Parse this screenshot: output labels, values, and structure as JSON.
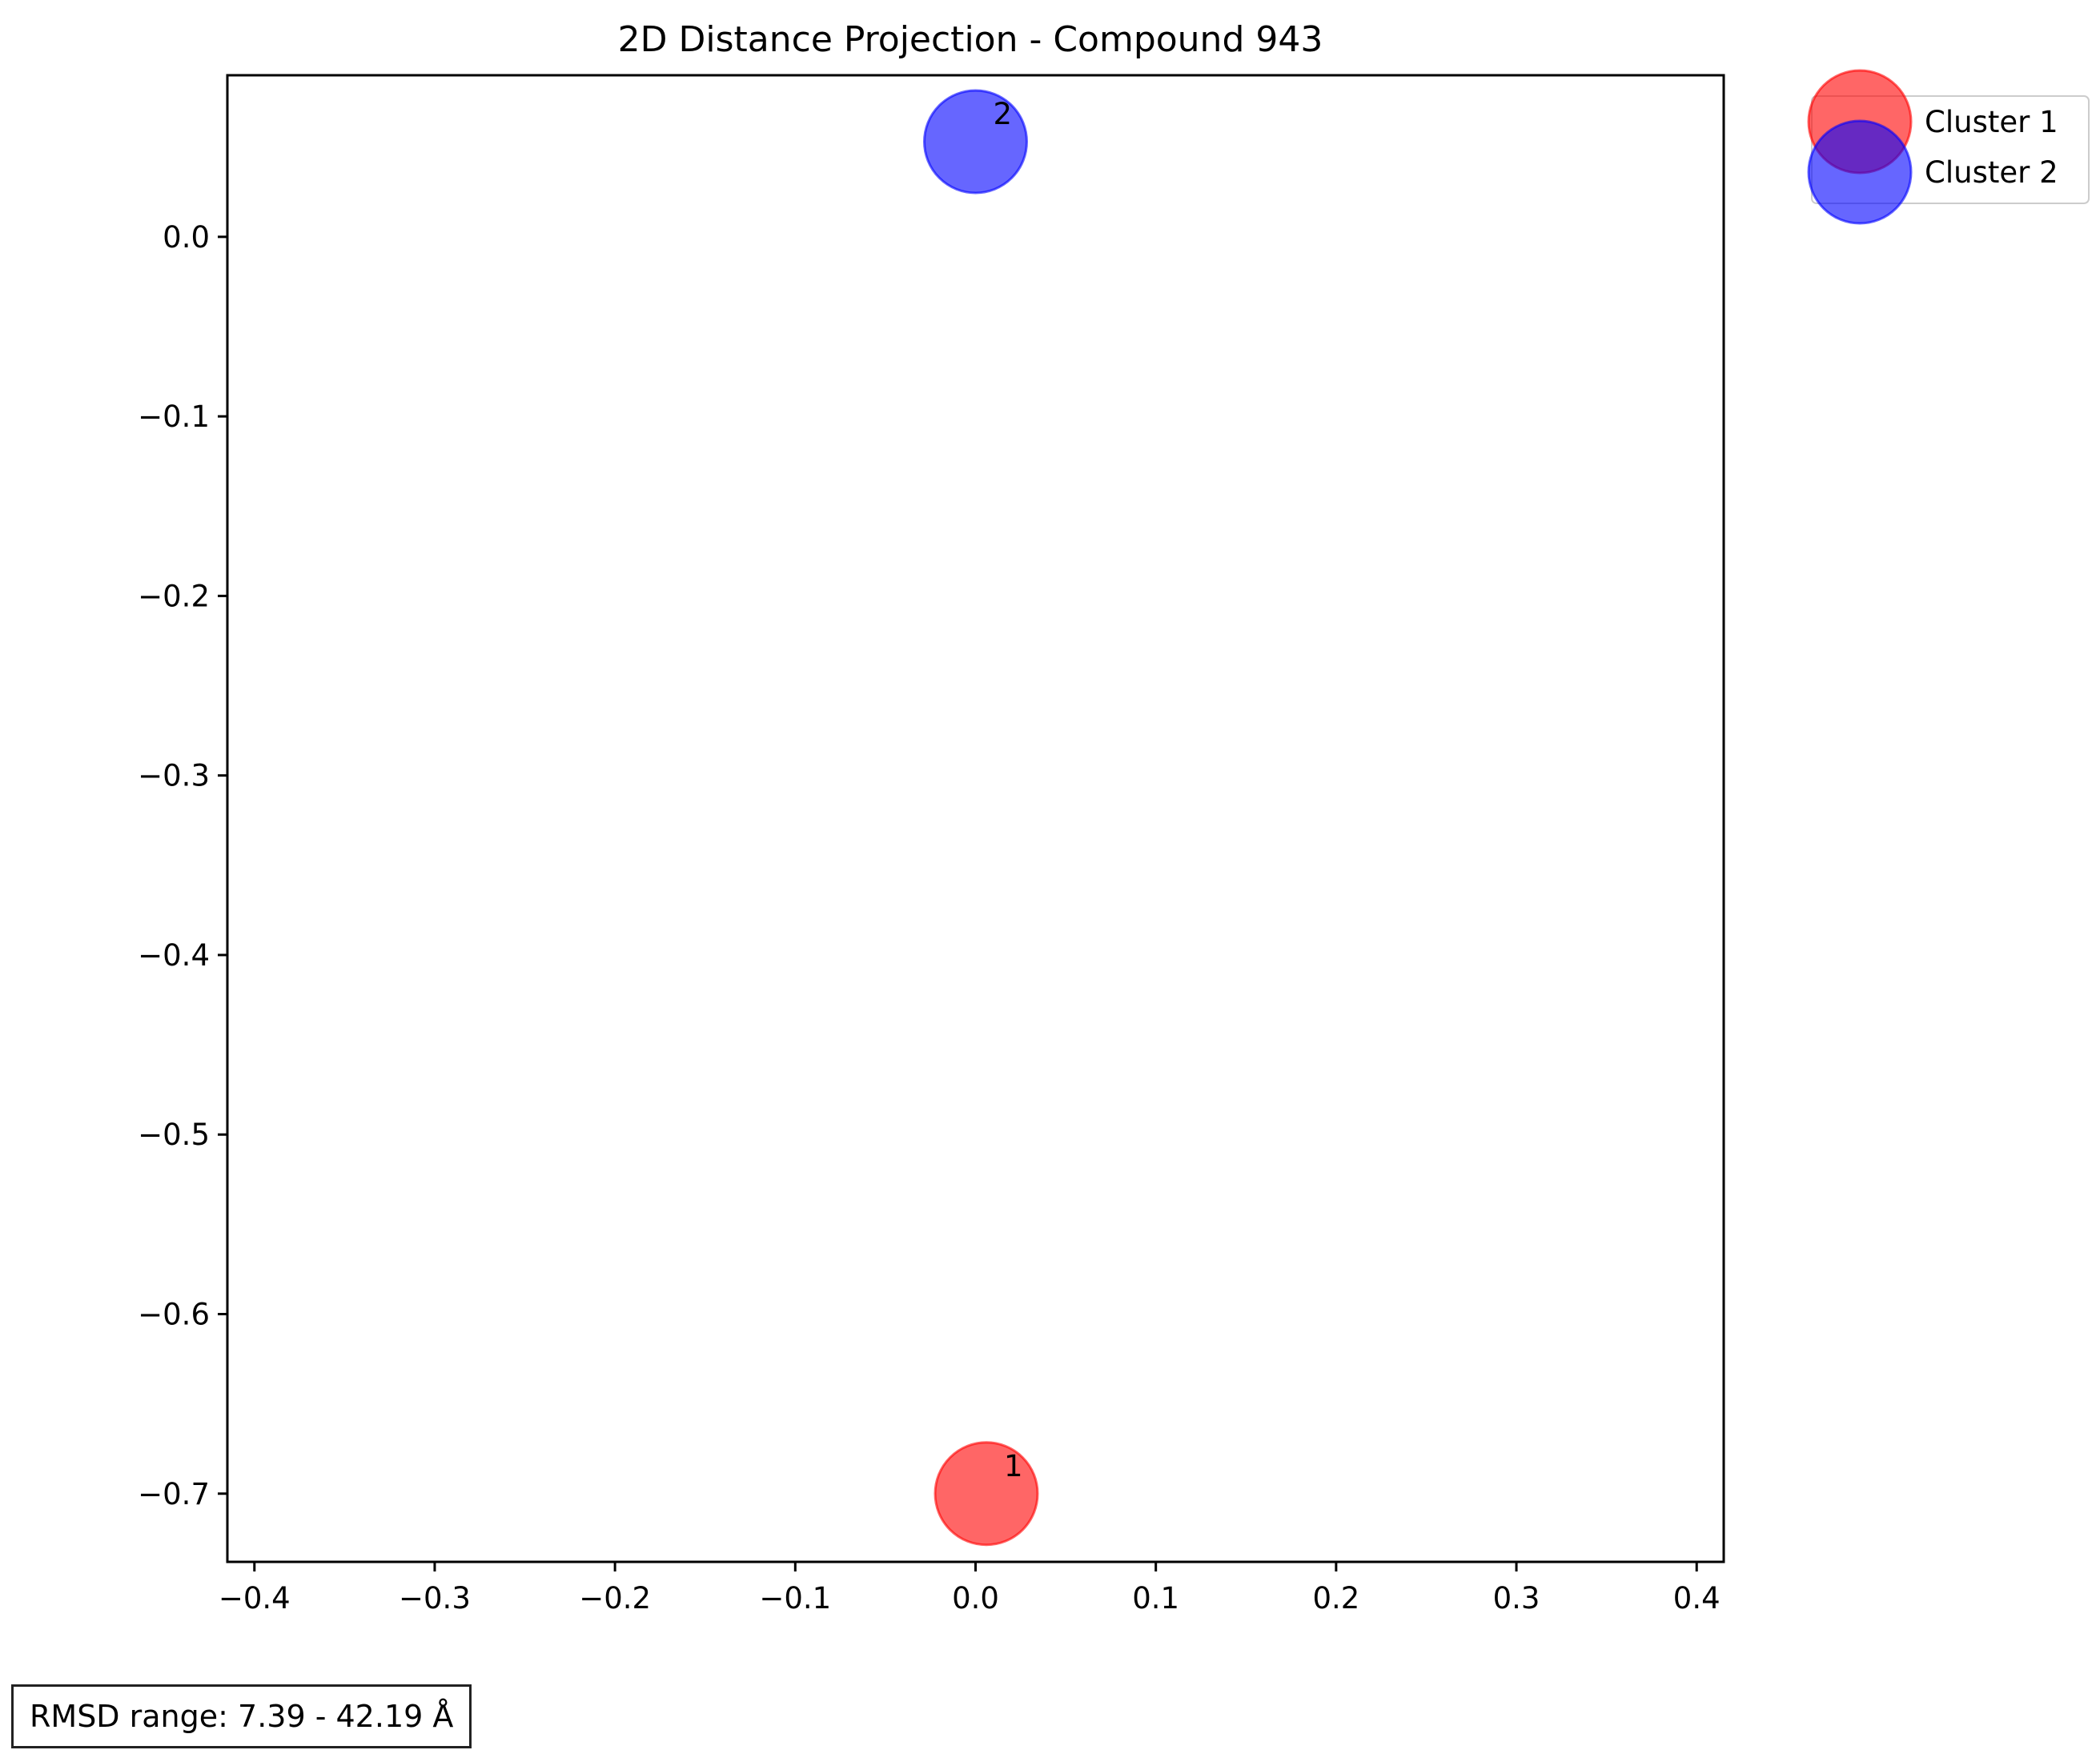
{
  "chart_data": {
    "type": "scatter",
    "title": "2D Distance Projection - Compound 943",
    "xlabel": "",
    "ylabel": "",
    "xlim": [
      -0.415,
      0.415
    ],
    "ylim": [
      -0.738,
      0.09
    ],
    "xticks": [
      -0.4,
      -0.3,
      -0.2,
      -0.1,
      0.0,
      0.1,
      0.2,
      0.3,
      0.4
    ],
    "xtick_labels": [
      "−0.4",
      "−0.3",
      "−0.2",
      "−0.1",
      "0.0",
      "0.1",
      "0.2",
      "0.3",
      "0.4"
    ],
    "yticks": [
      0.0,
      -0.1,
      -0.2,
      -0.3,
      -0.4,
      -0.5,
      -0.6,
      -0.7
    ],
    "ytick_labels": [
      "0.0",
      "−0.1",
      "−0.2",
      "−0.3",
      "−0.4",
      "−0.5",
      "−0.6",
      "−0.7"
    ],
    "grid": false,
    "legend_position": "outside-top-right",
    "series": [
      {
        "name": "Cluster 1",
        "label": "1",
        "color": "#ff0000",
        "x": [
          0.006
        ],
        "y": [
          -0.7
        ]
      },
      {
        "name": "Cluster 2",
        "label": "2",
        "color": "#0000ff",
        "x": [
          0.0
        ],
        "y": [
          0.053
        ]
      }
    ]
  },
  "annotation": {
    "rmsd_text": "RMSD range: 7.39 - 42.19 Å"
  }
}
